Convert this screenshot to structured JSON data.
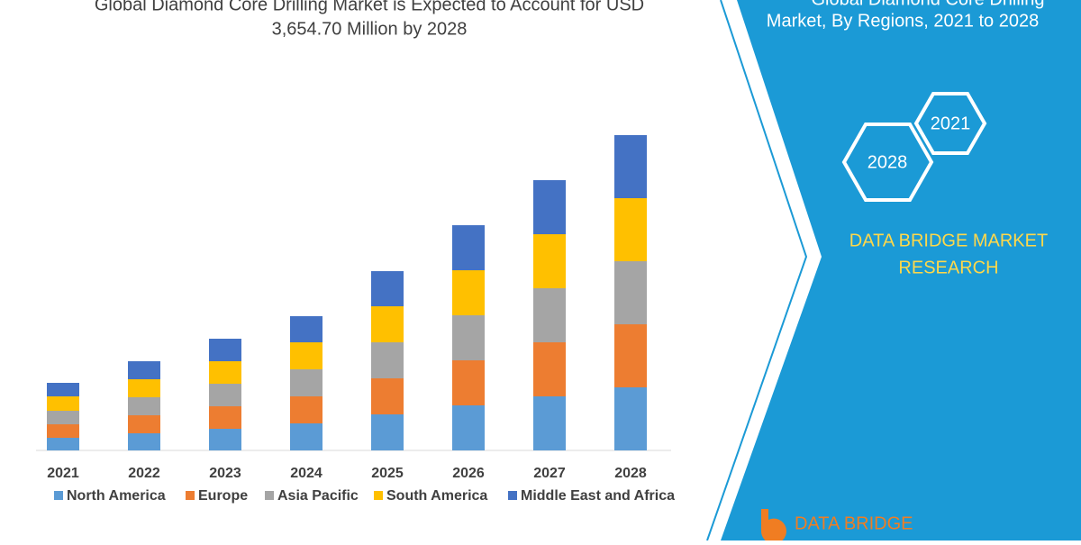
{
  "chart_data": {
    "type": "stacked-bar",
    "title": [
      "Global Diamond Core Drilling Market is Expected to Account for USD",
      "3,654.70 Million by 2028"
    ],
    "categories": [
      "2021",
      "2022",
      "2023",
      "2024",
      "2025",
      "2026",
      "2027",
      "2028"
    ],
    "series": [
      {
        "name": "North America",
        "color": "#5b9bd5",
        "values": [
          14,
          19,
          24,
          30,
          40,
          50,
          60,
          70
        ]
      },
      {
        "name": "Europe",
        "color": "#ed7d31",
        "values": [
          15,
          20,
          25,
          30,
          40,
          50,
          60,
          70
        ]
      },
      {
        "name": "Asia Pacific",
        "color": "#a5a5a5",
        "values": [
          15,
          20,
          25,
          30,
          40,
          50,
          60,
          70
        ]
      },
      {
        "name": "South America",
        "color": "#ffc000",
        "values": [
          16,
          20,
          25,
          30,
          40,
          50,
          60,
          70
        ]
      },
      {
        "name": "Middle East and Africa",
        "color": "#4472c4",
        "values": [
          15,
          20,
          25,
          29,
          39,
          50,
          60,
          70
        ]
      }
    ]
  },
  "side_panel": {
    "title": [
      "Global Diamond Core Drilling",
      "Market, By Regions, 2021 to 2028"
    ],
    "hexagons": [
      "2021",
      "2028"
    ],
    "brand": [
      "DATA BRIDGE MARKET",
      "RESEARCH"
    ],
    "logo": "DATA BRIDGE"
  }
}
